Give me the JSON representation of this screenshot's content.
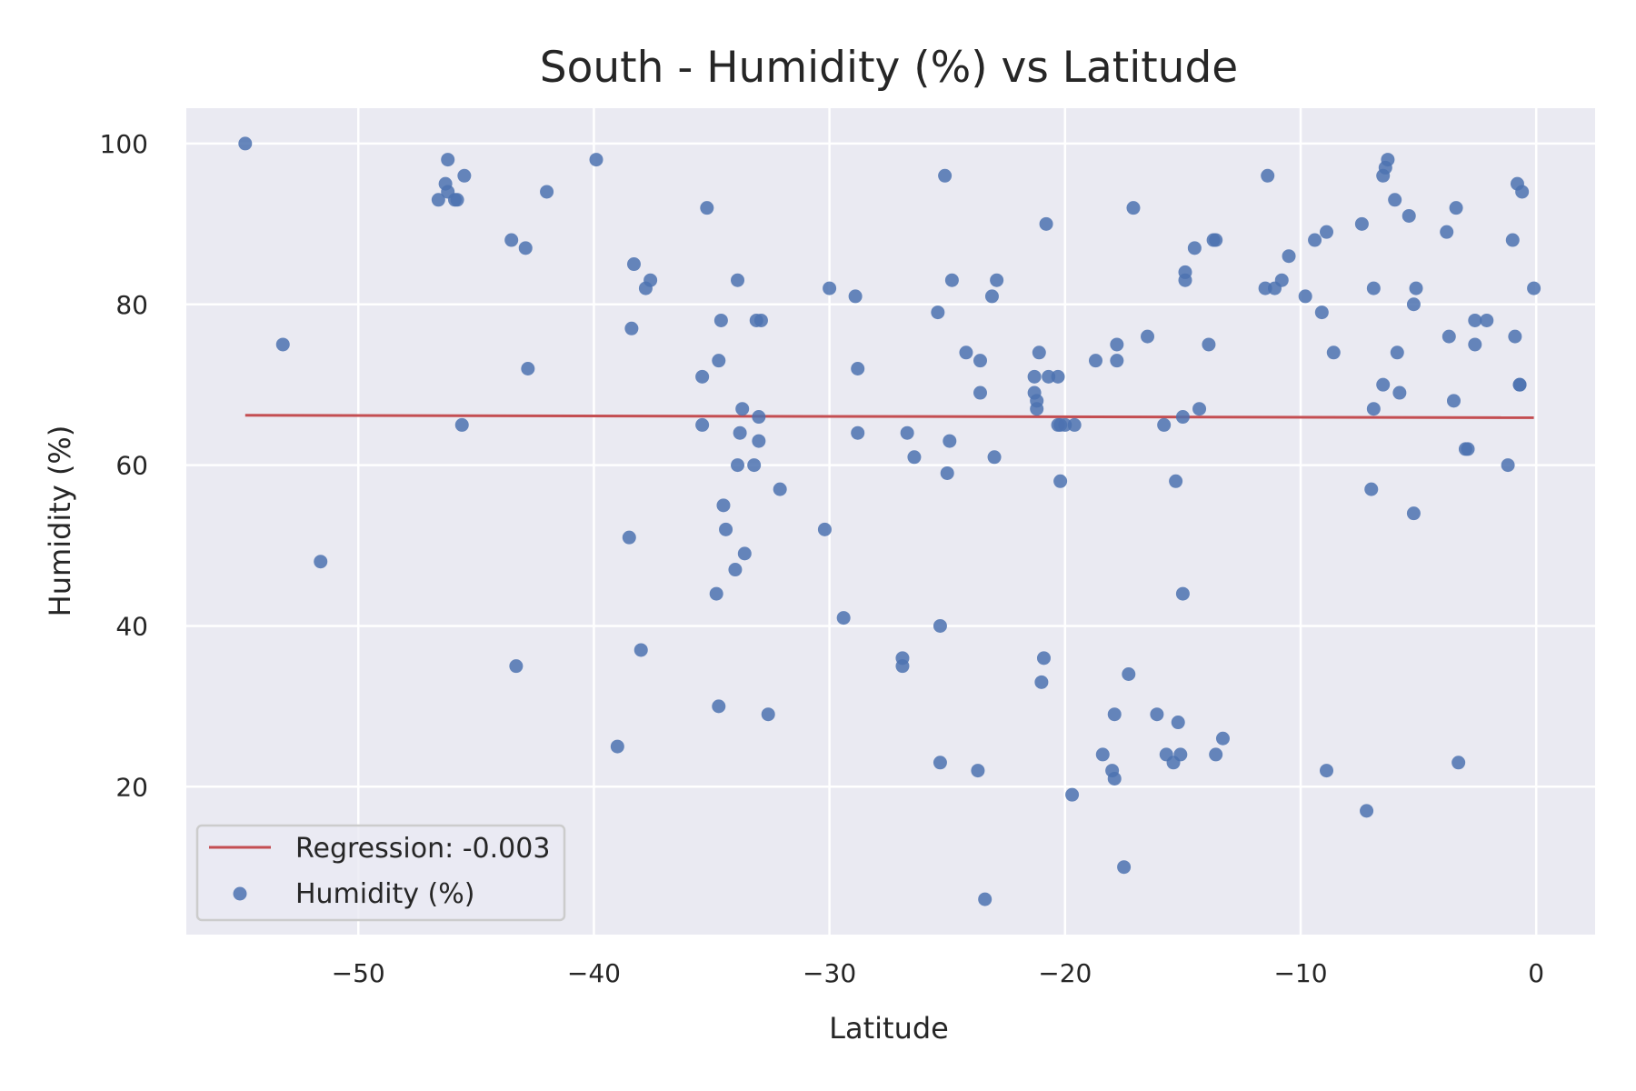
{
  "chart_data": {
    "type": "scatter",
    "title": "South - Humidity (%) vs Latitude",
    "xlabel": "Latitude",
    "ylabel": "Humidity (%)",
    "xlim": [
      -57.3,
      2.5
    ],
    "ylim": [
      1.6,
      104.4
    ],
    "xticks": [
      -50,
      -40,
      -30,
      -20,
      -10,
      0
    ],
    "yticks": [
      20,
      40,
      60,
      80,
      100
    ],
    "xtick_labels": [
      "−50",
      "−40",
      "−30",
      "−20",
      "−10",
      "0"
    ],
    "ytick_labels": [
      "20",
      "40",
      "60",
      "80",
      "100"
    ],
    "grid": true,
    "legend_position": "lower-left",
    "colors": {
      "points": "#4c72b0",
      "regression": "#c44e52",
      "plot_background": "#eaeaf2",
      "grid": "#ffffff"
    },
    "series": [
      {
        "name": "Regression: -0.003",
        "kind": "line",
        "x": [
          -54.8,
          -0.1
        ],
        "y": [
          66.2,
          65.9
        ]
      },
      {
        "name": "Humidity (%)",
        "kind": "scatter",
        "x": [
          -54.8,
          -53.2,
          -51.6,
          -46.6,
          -46.3,
          -46.2,
          -46.2,
          -45.9,
          -45.8,
          -45.6,
          -45.5,
          -43.5,
          -43.3,
          -42.9,
          -42.8,
          -42.0,
          -39.9,
          -39.0,
          -38.5,
          -38.4,
          -38.3,
          -38.0,
          -37.8,
          -37.6,
          -35.4,
          -35.4,
          -35.2,
          -34.8,
          -34.7,
          -34.7,
          -34.6,
          -34.5,
          -34.4,
          -34.0,
          -33.9,
          -33.9,
          -33.8,
          -33.7,
          -33.6,
          -33.2,
          -33.1,
          -33.0,
          -33.0,
          -32.9,
          -32.6,
          -32.1,
          -30.2,
          -30.0,
          -29.4,
          -28.9,
          -28.8,
          -28.8,
          -26.9,
          -26.9,
          -26.7,
          -26.4,
          -25.4,
          -25.3,
          -25.3,
          -25.1,
          -25.0,
          -24.9,
          -24.8,
          -24.2,
          -23.7,
          -23.6,
          -23.6,
          -23.4,
          -23.1,
          -23.0,
          -22.9,
          -21.3,
          -21.3,
          -21.2,
          -21.2,
          -21.1,
          -21.0,
          -20.9,
          -20.8,
          -20.7,
          -20.3,
          -20.3,
          -20.2,
          -20.2,
          -20.0,
          -19.7,
          -19.6,
          -18.7,
          -18.4,
          -18.0,
          -17.9,
          -17.9,
          -17.8,
          -17.8,
          -17.5,
          -17.3,
          -17.1,
          -16.5,
          -16.1,
          -15.8,
          -15.7,
          -15.4,
          -15.3,
          -15.2,
          -15.1,
          -15.0,
          -15.0,
          -14.9,
          -14.9,
          -14.5,
          -14.3,
          -13.9,
          -13.7,
          -13.6,
          -13.6,
          -13.3,
          -11.5,
          -11.4,
          -11.1,
          -10.8,
          -10.5,
          -9.8,
          -9.4,
          -9.1,
          -8.9,
          -8.9,
          -8.6,
          -7.4,
          -7.2,
          -7.0,
          -6.9,
          -6.9,
          -6.5,
          -6.5,
          -6.4,
          -6.3,
          -6.0,
          -5.9,
          -5.8,
          -5.4,
          -5.2,
          -5.2,
          -5.1,
          -3.8,
          -3.7,
          -3.5,
          -3.4,
          -3.3,
          -3.0,
          -2.9,
          -2.6,
          -2.6,
          -2.1,
          -1.2,
          -1.0,
          -0.9,
          -0.8,
          -0.7,
          -0.7,
          -0.6,
          -0.1
        ],
        "y": [
          100,
          75,
          48,
          93,
          95,
          94,
          98,
          93,
          93,
          65,
          96,
          88,
          35,
          87,
          72,
          94,
          98,
          25,
          51,
          77,
          85,
          37,
          82,
          83,
          71,
          65,
          92,
          44,
          73,
          30,
          78,
          55,
          52,
          47,
          60,
          83,
          64,
          67,
          49,
          60,
          78,
          63,
          66,
          78,
          29,
          57,
          52,
          82,
          41,
          81,
          64,
          72,
          35,
          36,
          64,
          61,
          79,
          23,
          40,
          96,
          59,
          63,
          83,
          74,
          22,
          69,
          73,
          6,
          81,
          61,
          83,
          71,
          69,
          67,
          68,
          74,
          33,
          36,
          90,
          71,
          71,
          65,
          58,
          65,
          65,
          19,
          65,
          73,
          24,
          22,
          21,
          29,
          73,
          75,
          10,
          34,
          92,
          76,
          29,
          65,
          24,
          23,
          58,
          28,
          24,
          66,
          44,
          83,
          84,
          87,
          67,
          75,
          88,
          24,
          88,
          26,
          82,
          96,
          82,
          83,
          86,
          81,
          88,
          79,
          22,
          89,
          74,
          90,
          17,
          57,
          67,
          82,
          70,
          96,
          97,
          98,
          93,
          74,
          69,
          91,
          54,
          80,
          82,
          89,
          76,
          68,
          92,
          23,
          62,
          62,
          75,
          78,
          78,
          60,
          88,
          76,
          95,
          70,
          70,
          94,
          82
        ]
      }
    ]
  }
}
